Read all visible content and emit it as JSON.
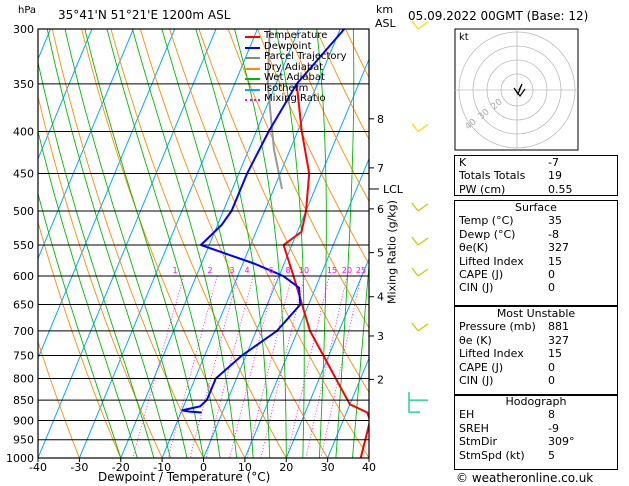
{
  "header": {
    "hpa_label": "hPa",
    "location": "35°41'N  51°21'E  1200m  ASL",
    "km_label": "km",
    "asl_label": "ASL",
    "date": "05.09.2022  00GMT  (Base: 12)"
  },
  "footer": {
    "copyright": "© weatheronline.co.uk"
  },
  "legend": [
    {
      "label": "Temperature",
      "color": "#ff0000",
      "style": "solid"
    },
    {
      "label": "Dewpoint",
      "color": "#0000ff",
      "style": "solid"
    },
    {
      "label": "Parcel Trajectory",
      "color": "#888888",
      "style": "solid"
    },
    {
      "label": "Dry Adiabat",
      "color": "#ff8c00",
      "style": "solid"
    },
    {
      "label": "Wet Adiabat",
      "color": "#00bb00",
      "style": "solid"
    },
    {
      "label": "Isotherm",
      "color": "#00aaff",
      "style": "solid"
    },
    {
      "label": "Mixing Ratio",
      "color": "#ff00ff",
      "style": "dotted"
    }
  ],
  "chart_data": {
    "type": "skew-t",
    "xlabel": "Dewpoint / Temperature (°C)",
    "ylabel_right": "Mixing Ratio (g/kg)",
    "pressure_levels": [
      300,
      350,
      400,
      450,
      500,
      550,
      600,
      650,
      700,
      750,
      800,
      850,
      900,
      950,
      1000
    ],
    "x_ticks": [
      -40,
      -30,
      -20,
      -10,
      0,
      10,
      20,
      30,
      40
    ],
    "km_ticks": [
      {
        "km": "8",
        "p": 386
      },
      {
        "km": "7",
        "p": 443
      },
      {
        "km": "6",
        "p": 497
      },
      {
        "km": "5",
        "p": 562
      },
      {
        "km": "4",
        "p": 636
      },
      {
        "km": "3",
        "p": 710
      },
      {
        "km": "2",
        "p": 802
      }
    ],
    "lcl": {
      "label": "LCL",
      "p": 470
    },
    "mixing_ratio_labels": [
      {
        "label": "1",
        "x": 175
      },
      {
        "label": "2",
        "x": 210
      },
      {
        "label": "3",
        "x": 232
      },
      {
        "label": "4",
        "x": 247
      },
      {
        "label": "6",
        "x": 271
      },
      {
        "label": "8",
        "x": 288
      },
      {
        "label": "10",
        "x": 304
      },
      {
        "label": "15",
        "x": 332
      },
      {
        "label": "20",
        "x": 347
      },
      {
        "label": "25",
        "x": 361
      }
    ],
    "temperature_profile": [
      [
        1000,
        38
      ],
      [
        900,
        36.5
      ],
      [
        880,
        35
      ],
      [
        860,
        30
      ],
      [
        800,
        24
      ],
      [
        700,
        13
      ],
      [
        600,
        3.5
      ],
      [
        550,
        -2
      ],
      [
        530,
        1
      ],
      [
        500,
        0
      ],
      [
        450,
        -3
      ],
      [
        400,
        -9
      ],
      [
        350,
        -15
      ]
    ],
    "dewpoint_profile": [
      [
        880,
        -5
      ],
      [
        878,
        -8
      ],
      [
        875,
        -10
      ],
      [
        865,
        -6
      ],
      [
        850,
        -5
      ],
      [
        800,
        -5
      ],
      [
        750,
        -1
      ],
      [
        700,
        5
      ],
      [
        650,
        8
      ],
      [
        620,
        6
      ],
      [
        600,
        1
      ],
      [
        580,
        -7
      ],
      [
        550,
        -22
      ],
      [
        520,
        -19
      ],
      [
        500,
        -18
      ],
      [
        450,
        -18
      ],
      [
        400,
        -17
      ],
      [
        350,
        -15
      ],
      [
        300,
        -9
      ]
    ],
    "parcel_trajectory": [
      [
        470,
        -8
      ],
      [
        420,
        -14
      ],
      [
        350,
        -22
      ],
      [
        300,
        -27
      ]
    ]
  },
  "hodograph": {
    "label": "kt",
    "ring_labels": [
      "40",
      "30",
      "20"
    ]
  },
  "indices": [
    {
      "key": "K",
      "value": "-7"
    },
    {
      "key": "Totals Totals",
      "value": "19"
    },
    {
      "key": "PW (cm)",
      "value": "0.55"
    }
  ],
  "surface": {
    "title": "Surface",
    "rows": [
      {
        "key": "Temp (°C)",
        "value": "35"
      },
      {
        "key": "Dewp (°C)",
        "value": "-8"
      },
      {
        "key": "θe(K)",
        "value": "327"
      },
      {
        "key": "Lifted Index",
        "value": "15"
      },
      {
        "key": "CAPE (J)",
        "value": "0"
      },
      {
        "key": "CIN (J)",
        "value": "0"
      }
    ]
  },
  "most_unstable": {
    "title": "Most Unstable",
    "rows": [
      {
        "key": "Pressure (mb)",
        "value": "881"
      },
      {
        "key": "θe (K)",
        "value": "327"
      },
      {
        "key": "Lifted Index",
        "value": "15"
      },
      {
        "key": "CAPE (J)",
        "value": "0"
      },
      {
        "key": "CIN (J)",
        "value": "0"
      }
    ]
  },
  "hodograph_table": {
    "title": "Hodograph",
    "rows": [
      {
        "key": "EH",
        "value": "8"
      },
      {
        "key": "SREH",
        "value": "-9"
      },
      {
        "key": "StmDir",
        "value": "309°"
      },
      {
        "key": "StmSpd (kt)",
        "value": "5"
      }
    ]
  }
}
